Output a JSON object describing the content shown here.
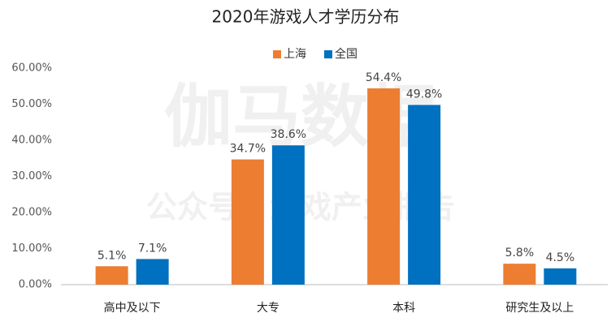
{
  "chart_data": {
    "type": "bar",
    "title": "2020年游戏人才学历分布",
    "watermark": [
      "伽马数据",
      "公众号：游戏产业报告"
    ],
    "categories": [
      "高中及以下",
      "大专",
      "本科",
      "研究生及以上"
    ],
    "series": [
      {
        "name": "上海",
        "color": "#ed7d31",
        "values": [
          5.1,
          34.7,
          54.4,
          5.8
        ],
        "value_labels": [
          "5.1%",
          "34.7%",
          "54.4%",
          "5.8%"
        ]
      },
      {
        "name": "全国",
        "color": "#0070c0",
        "values": [
          7.1,
          38.6,
          49.8,
          4.5
        ],
        "value_labels": [
          "7.1%",
          "38.6%",
          "49.8%",
          "4.5%"
        ]
      }
    ],
    "ylim": [
      0,
      60
    ],
    "yticks": [
      {
        "value": 0,
        "label": "0.00%"
      },
      {
        "value": 10,
        "label": "10.00%"
      },
      {
        "value": 20,
        "label": "20.00%"
      },
      {
        "value": 30,
        "label": "30.00%"
      },
      {
        "value": 40,
        "label": "40.00%"
      },
      {
        "value": 50,
        "label": "50.00%"
      },
      {
        "value": 60,
        "label": "60.00%"
      }
    ],
    "grid": false,
    "legend": "top"
  }
}
